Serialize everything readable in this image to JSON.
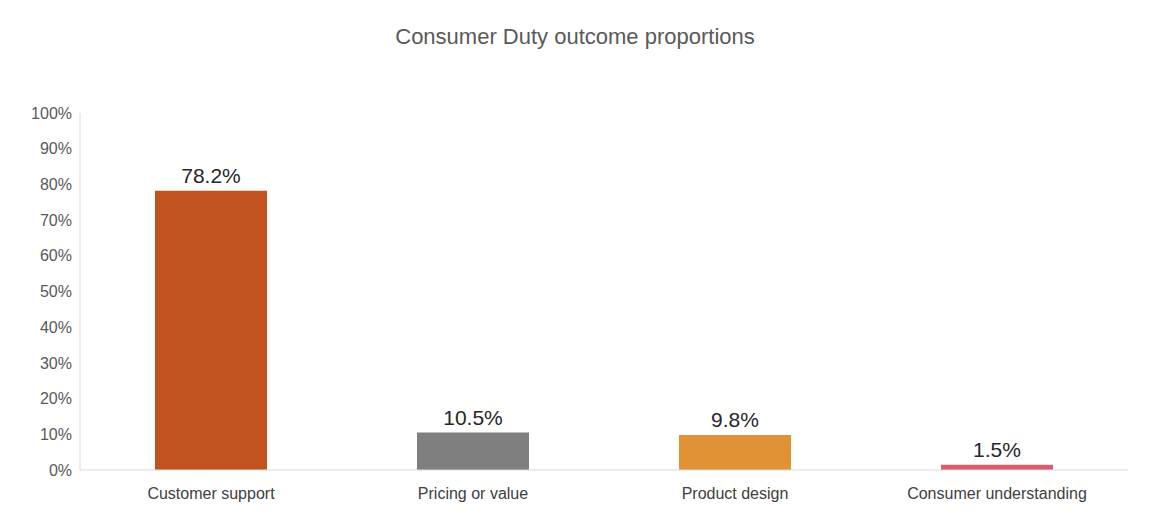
{
  "chart_data": {
    "type": "bar",
    "title": "Consumer Duty outcome proportions",
    "categories": [
      "Customer support",
      "Pricing or value",
      "Product design",
      "Consumer understanding"
    ],
    "values": [
      78.2,
      10.5,
      9.8,
      1.5
    ],
    "value_labels": [
      "78.2%",
      "10.5%",
      "9.8%",
      "1.5%"
    ],
    "colors": [
      "#C0531F",
      "#7F7F7F",
      "#E09234",
      "#D45D6E"
    ],
    "ylim": [
      0,
      100
    ],
    "yticks": [
      {
        "value": 0,
        "label": "0%"
      },
      {
        "value": 10,
        "label": "10%"
      },
      {
        "value": 20,
        "label": "20%"
      },
      {
        "value": 30,
        "label": "30%"
      },
      {
        "value": 40,
        "label": "40%"
      },
      {
        "value": 50,
        "label": "50%"
      },
      {
        "value": 60,
        "label": "60%"
      },
      {
        "value": 70,
        "label": "70%"
      },
      {
        "value": 80,
        "label": "80%"
      },
      {
        "value": 90,
        "label": "90%"
      },
      {
        "value": 100,
        "label": "100%"
      }
    ],
    "grid": false,
    "data_labels": true
  }
}
